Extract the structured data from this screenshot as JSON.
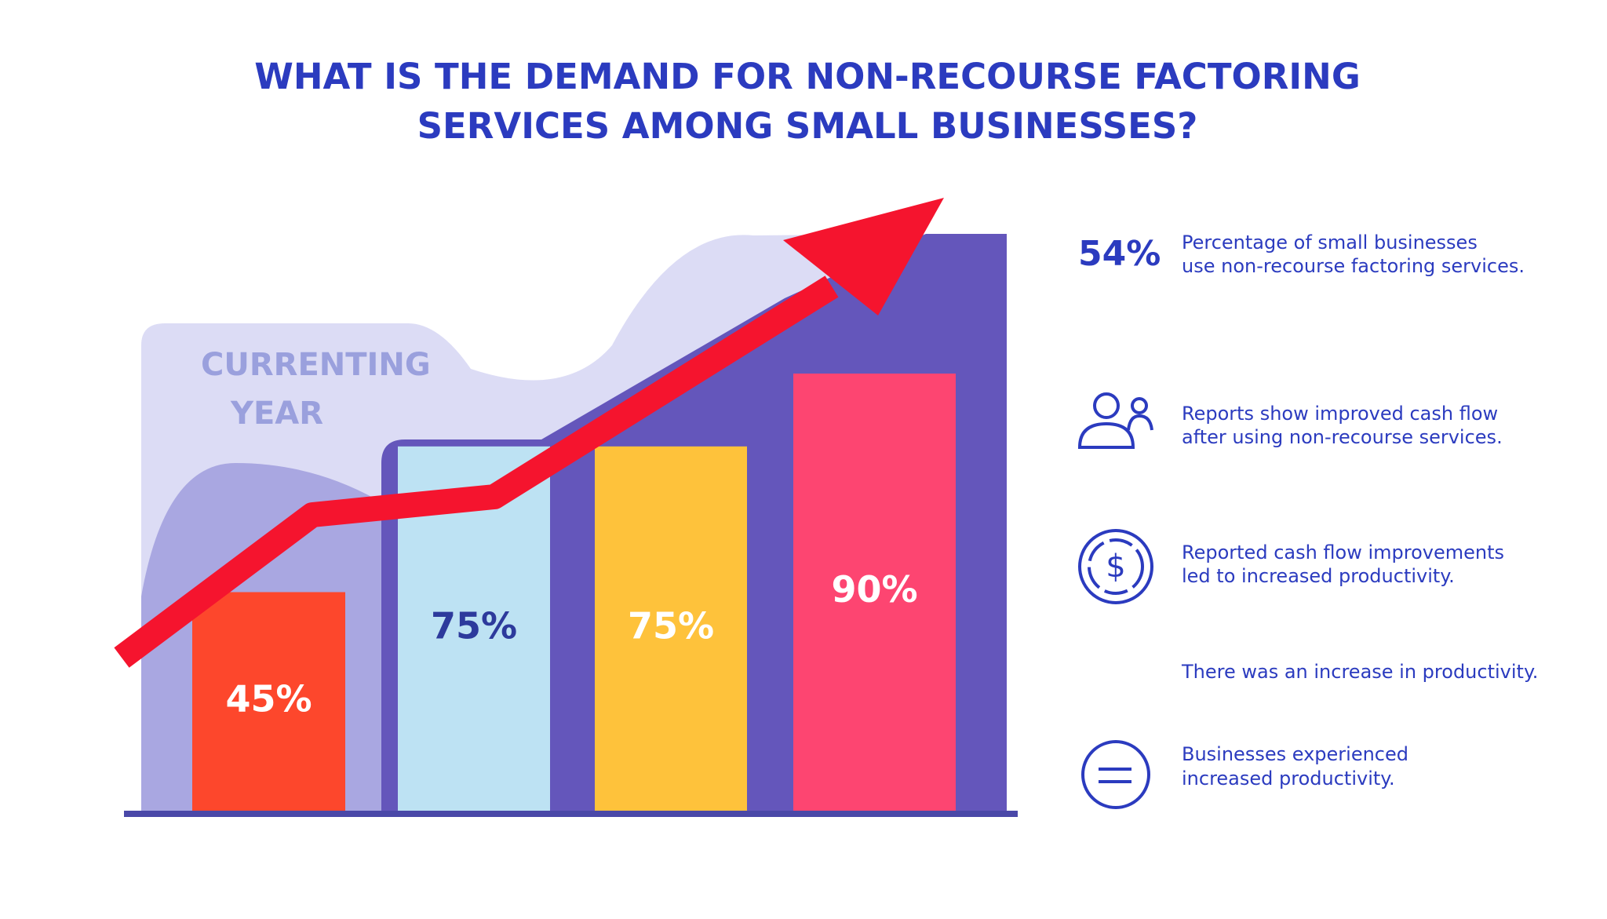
{
  "chart_data": {
    "type": "bar",
    "title": [
      "WHAT IS THE DEMAND FOR NON-RECOURSE FACTORING",
      "SERVICES AMONG SMALL BUSINESSES?"
    ],
    "annotation": [
      "CURRENTING",
      "YEAR"
    ],
    "values": [
      45,
      75,
      75,
      90
    ],
    "value_labels": [
      "45%",
      "75%",
      "75%",
      "90%"
    ],
    "colors": [
      "#fd472c",
      "#bde2f3",
      "#fec23b",
      "#fd4571"
    ],
    "label_colors": [
      "#ffffff",
      "#2d3a9c",
      "#ffffff",
      "#ffffff"
    ]
  },
  "facts": [
    {
      "stat": "54%",
      "lines": [
        "Percentage of small businesses",
        "use non-recourse factoring services."
      ]
    },
    {
      "lines": [
        "Reports show improved cash flow",
        "after using non-recourse services."
      ]
    },
    {
      "lines": [
        "Reported cash flow improvements",
        "led to increased productivity."
      ]
    },
    {
      "lines": [
        "There was an increase in productivity."
      ]
    },
    {
      "lines": [
        "Businesses experienced",
        "increased productivity."
      ]
    }
  ]
}
